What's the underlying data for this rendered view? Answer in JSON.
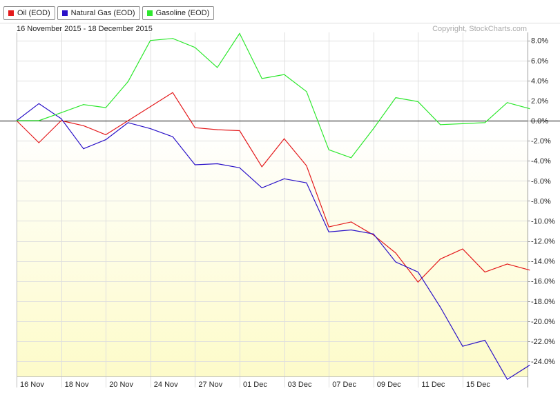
{
  "header": {
    "date_range": "16 November 2015 - 18 December 2015",
    "copyright": "Copyright, StockCharts.com"
  },
  "legend": [
    {
      "label": "Oil (EOD)",
      "color": "#e41a1c"
    },
    {
      "label": "Natural Gas (EOD)",
      "color": "#2a11c8"
    },
    {
      "label": "Gasoline (EOD)",
      "color": "#2ee82e"
    }
  ],
  "chart_data": {
    "type": "line",
    "ylim": [
      -25.5,
      8.8
    ],
    "y_ticks": [
      8,
      6,
      4,
      2,
      0,
      -2,
      -4,
      -6,
      -8,
      -10,
      -12,
      -14,
      -16,
      -18,
      -20,
      -22,
      -24
    ],
    "y_tick_labels": [
      "8.0%",
      "6.0%",
      "4.0%",
      "2.0%",
      "0.0%",
      "-2.0%",
      "-4.0%",
      "-6.0%",
      "-8.0%",
      "-10.0%",
      "-12.0%",
      "-14.0%",
      "-16.0%",
      "-18.0%",
      "-20.0%",
      "-22.0%",
      "-24.0%"
    ],
    "x_tick_labels": [
      "16 Nov",
      "18 Nov",
      "20 Nov",
      "24 Nov",
      "27 Nov",
      "01 Dec",
      "03 Dec",
      "07 Dec",
      "09 Dec",
      "11 Dec",
      "15 Dec"
    ],
    "x_tick_index": [
      0,
      2,
      4,
      6,
      8,
      10,
      12,
      14,
      16,
      18,
      20
    ],
    "series": [
      {
        "name": "Oil (EOD)",
        "color": "#e41a1c",
        "values": [
          0.0,
          -2.2,
          0.0,
          -0.5,
          -1.4,
          0.0,
          1.4,
          2.8,
          -0.7,
          -0.9,
          -1.0,
          -4.6,
          -1.8,
          -4.5,
          -10.6,
          -10.1,
          -11.4,
          -13.2,
          -16.1,
          -13.8,
          -12.8,
          -15.1,
          -14.3,
          -14.9
        ]
      },
      {
        "name": "Natural Gas (EOD)",
        "color": "#2a11c8",
        "values": [
          0.0,
          1.7,
          0.2,
          -2.8,
          -1.9,
          -0.2,
          -0.8,
          -1.6,
          -4.4,
          -4.3,
          -4.7,
          -6.7,
          -5.8,
          -6.2,
          -11.1,
          -10.9,
          -11.3,
          -14.1,
          -15.1,
          -18.6,
          -22.5,
          -21.9,
          -25.8,
          -24.4
        ]
      },
      {
        "name": "Gasoline (EOD)",
        "color": "#2ee82e",
        "values": [
          0.0,
          0.0,
          0.8,
          1.6,
          1.3,
          3.9,
          8.0,
          8.2,
          7.3,
          5.3,
          8.7,
          4.2,
          4.6,
          2.9,
          -2.9,
          -3.7,
          -0.8,
          2.3,
          1.9,
          -0.4,
          -0.3,
          -0.2,
          1.8,
          1.2
        ]
      }
    ]
  }
}
